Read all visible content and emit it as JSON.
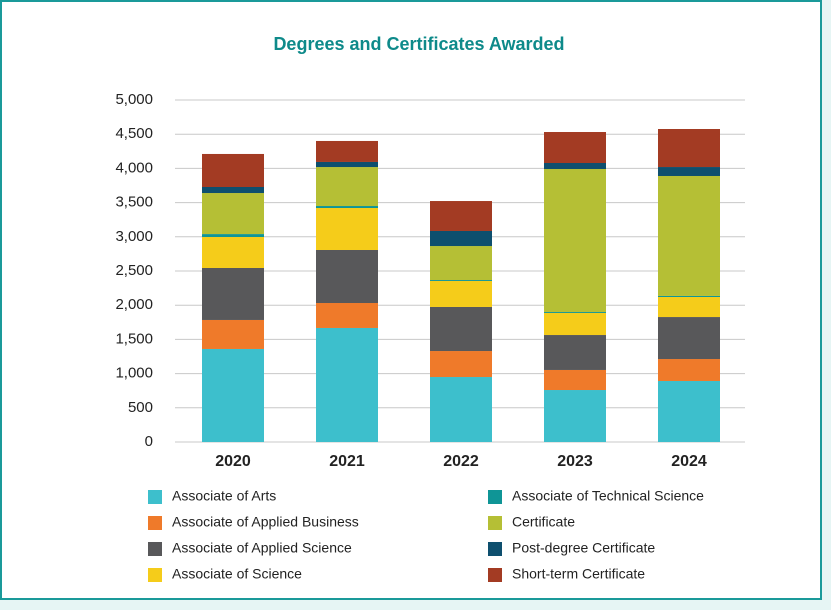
{
  "chart_data": {
    "type": "stacked_bar",
    "title": "Degrees and Certificates Awarded",
    "categories": [
      "2020",
      "2021",
      "2022",
      "2023",
      "2024"
    ],
    "ylim": [
      0,
      5000
    ],
    "yticks": [
      0,
      500,
      {
        "value": 1000,
        "label": "1,000"
      },
      {
        "value": 1500,
        "label": "1,500"
      },
      {
        "value": 2000,
        "label": "2,000"
      },
      {
        "value": 2500,
        "label": "2,500"
      },
      {
        "value": 3000,
        "label": "3,000"
      },
      {
        "value": 3500,
        "label": "3,500"
      },
      {
        "value": 4000,
        "label": "4,000"
      },
      {
        "value": 4500,
        "label": "4,500"
      },
      {
        "value": 5000,
        "label": "5,000"
      }
    ],
    "grid": true,
    "series": [
      {
        "name": "Associate of Arts",
        "color": "#3dbfcc",
        "values": [
          1360,
          1667,
          950,
          760,
          892
        ]
      },
      {
        "name": "Associate of Applied Business",
        "color": "#ef7a2a",
        "values": [
          424,
          365,
          380,
          293,
          321
        ]
      },
      {
        "name": "Associate of Applied Science",
        "color": "#58585a",
        "values": [
          760,
          775,
          644,
          511,
          614
        ]
      },
      {
        "name": "Associate of Science",
        "color": "#f5cc1a",
        "values": [
          453,
          614,
          380,
          322,
          293
        ]
      },
      {
        "name": "Associate of Technical Science",
        "color": "#0f9596",
        "values": [
          43,
          29,
          14,
          14,
          15
        ]
      },
      {
        "name": "Certificate",
        "color": "#b5bf35",
        "values": [
          600,
          570,
          497,
          2091,
          1754
        ]
      },
      {
        "name": "Post-degree Certificate",
        "color": "#0e4f6e",
        "values": [
          88,
          74,
          220,
          88,
          131
        ]
      },
      {
        "name": "Short-term Certificate",
        "color": "#a33b23",
        "values": [
          483,
          307,
          438,
          453,
          556
        ]
      }
    ]
  }
}
